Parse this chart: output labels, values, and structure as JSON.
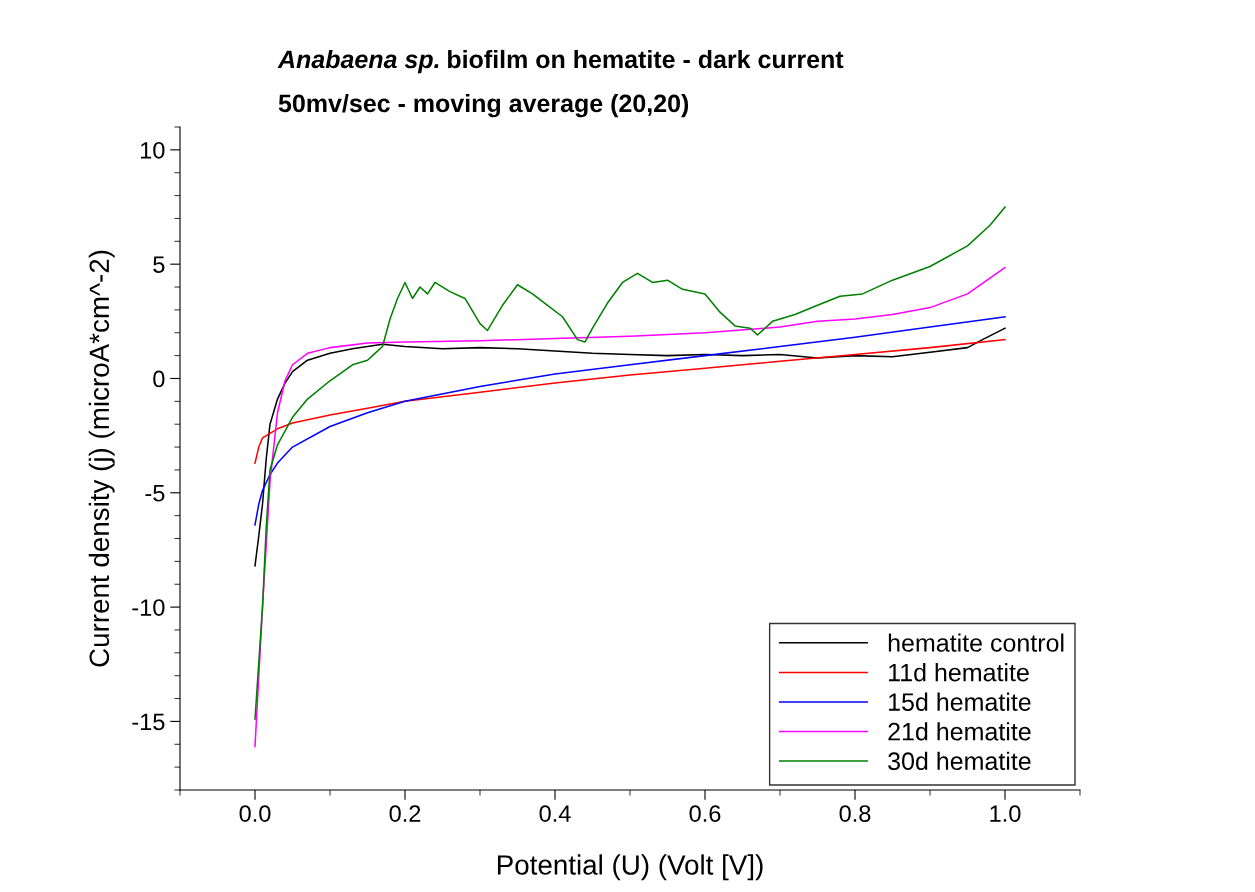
{
  "chart_data": {
    "type": "line",
    "title": "Anabaena sp. biofilm on hematite - dark current",
    "subtitle": "50mv/sec - moving average (20,20)",
    "xlabel": "Potential (U) (Volt [V])",
    "ylabel": "Current density (j) (microA*cm^-2)",
    "xlim": [
      -0.1,
      1.1
    ],
    "ylim": [
      -18,
      11
    ],
    "xticks": [
      {
        "value": 0,
        "label": "0.0"
      },
      0.2,
      0.4,
      0.6,
      0.8,
      {
        "value": 1,
        "label": "1.0"
      }
    ],
    "yticks": [
      -15,
      -10,
      -5,
      0,
      5,
      10
    ],
    "grid": false,
    "legend": "bottom right",
    "marker": "none",
    "line_style": "solid",
    "series": [
      {
        "name": "hematite control",
        "color": "#000000",
        "x": [
          0,
          0.005,
          0.01,
          0.015,
          0.02,
          0.03,
          0.04,
          0.05,
          0.07,
          0.1,
          0.13,
          0.17,
          0.2,
          0.25,
          0.3,
          0.35,
          0.4,
          0.45,
          0.5,
          0.55,
          0.6,
          0.65,
          0.7,
          0.75,
          0.8,
          0.85,
          0.9,
          0.95,
          0.97,
          1.0
        ],
        "values": [
          -8.2,
          -6.9,
          -5.5,
          -3.5,
          -2.0,
          -0.9,
          -0.2,
          0.3,
          0.8,
          1.1,
          1.3,
          1.5,
          1.4,
          1.3,
          1.35,
          1.3,
          1.2,
          1.1,
          1.05,
          1.0,
          1.05,
          1.0,
          1.05,
          0.9,
          1.0,
          0.95,
          1.15,
          1.35,
          1.7,
          2.2
        ]
      },
      {
        "name": "11d hematite",
        "color": "#ff0000",
        "x": [
          0,
          0.005,
          0.01,
          0.03,
          0.05,
          0.1,
          0.15,
          0.2,
          0.3,
          0.4,
          0.5,
          0.6,
          0.7,
          0.8,
          0.9,
          1.0
        ],
        "values": [
          -3.7,
          -3.0,
          -2.6,
          -2.2,
          -1.95,
          -1.6,
          -1.3,
          -1.0,
          -0.6,
          -0.2,
          0.15,
          0.45,
          0.75,
          1.05,
          1.35,
          1.7
        ]
      },
      {
        "name": "15d hematite",
        "color": "#0000ff",
        "x": [
          0,
          0.005,
          0.01,
          0.02,
          0.03,
          0.05,
          0.1,
          0.15,
          0.2,
          0.3,
          0.4,
          0.5,
          0.6,
          0.7,
          0.8,
          0.9,
          1.0
        ],
        "values": [
          -6.4,
          -5.5,
          -4.9,
          -4.2,
          -3.7,
          -3.0,
          -2.1,
          -1.5,
          -1.0,
          -0.35,
          0.2,
          0.6,
          1.0,
          1.4,
          1.8,
          2.25,
          2.7
        ]
      },
      {
        "name": "21d hematite",
        "color": "#ff00ff",
        "x": [
          0,
          0.01,
          0.02,
          0.03,
          0.04,
          0.05,
          0.07,
          0.1,
          0.15,
          0.2,
          0.3,
          0.4,
          0.5,
          0.6,
          0.7,
          0.75,
          0.8,
          0.85,
          0.9,
          0.95,
          1.0
        ],
        "values": [
          -16.1,
          -10,
          -4.5,
          -1.5,
          -0.1,
          0.6,
          1.1,
          1.35,
          1.55,
          1.6,
          1.65,
          1.75,
          1.85,
          2.0,
          2.25,
          2.5,
          2.6,
          2.8,
          3.1,
          3.7,
          4.85
        ]
      },
      {
        "name": "30d hematite",
        "color": "#008000",
        "x": [
          0,
          0.01,
          0.015,
          0.02,
          0.03,
          0.05,
          0.07,
          0.1,
          0.13,
          0.15,
          0.16,
          0.17,
          0.18,
          0.19,
          0.2,
          0.21,
          0.22,
          0.23,
          0.24,
          0.26,
          0.28,
          0.3,
          0.31,
          0.33,
          0.35,
          0.37,
          0.39,
          0.41,
          0.43,
          0.44,
          0.45,
          0.47,
          0.49,
          0.51,
          0.53,
          0.55,
          0.57,
          0.6,
          0.62,
          0.64,
          0.66,
          0.67,
          0.69,
          0.72,
          0.75,
          0.78,
          0.81,
          0.85,
          0.9,
          0.95,
          0.98,
          1.0
        ],
        "values": [
          -14.9,
          -10,
          -6.5,
          -4.0,
          -2.9,
          -1.7,
          -0.9,
          -0.1,
          0.6,
          0.8,
          1.1,
          1.4,
          2.6,
          3.5,
          4.2,
          3.5,
          4.0,
          3.7,
          4.2,
          3.8,
          3.5,
          2.4,
          2.1,
          3.2,
          4.1,
          3.7,
          3.2,
          2.7,
          1.7,
          1.6,
          2.2,
          3.3,
          4.2,
          4.6,
          4.2,
          4.3,
          3.9,
          3.7,
          2.9,
          2.3,
          2.2,
          1.9,
          2.5,
          2.8,
          3.2,
          3.6,
          3.7,
          4.3,
          4.9,
          5.8,
          6.7,
          7.5
        ]
      }
    ]
  }
}
